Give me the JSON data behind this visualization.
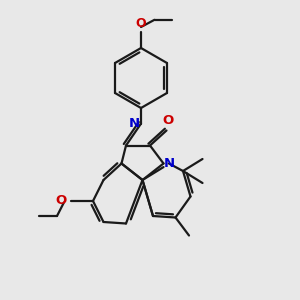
{
  "bg_color": "#e8e8e8",
  "bond_color": "#1a1a1a",
  "N_color": "#0000cc",
  "O_color": "#cc0000",
  "lw": 1.6,
  "figsize": [
    3.0,
    3.0
  ],
  "dpi": 100,
  "xlim": [
    0,
    10
  ],
  "ylim": [
    0,
    10
  ]
}
